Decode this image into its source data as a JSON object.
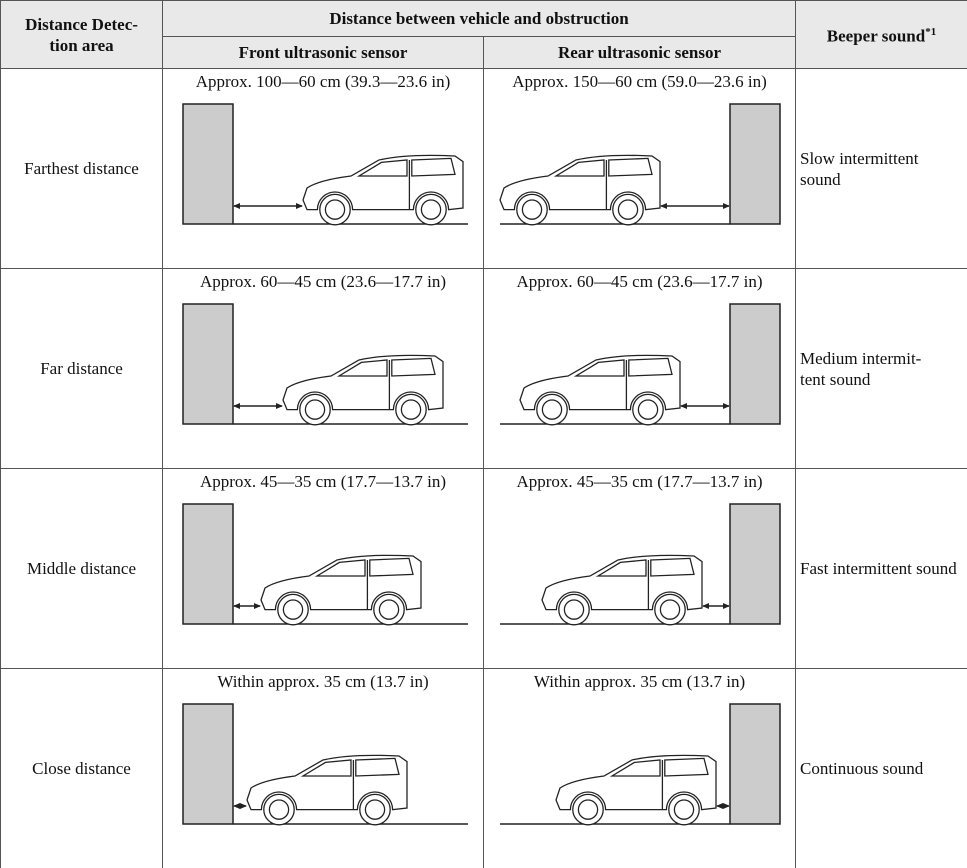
{
  "header": {
    "area": "Distance Detec-\ntion area",
    "group": "Distance between vehicle and obstruction",
    "front": "Front ultrasonic sensor",
    "rear": "Rear ultrasonic sensor",
    "beeper": "Beeper sound",
    "beeper_note": "*1"
  },
  "rows": [
    {
      "area": "Farthest distance",
      "front": "Approx. 100—60 cm (39.3—23.6 in)",
      "rear": "Approx. 150—60 cm (59.0—23.6 in)",
      "sound": "Slow intermittent sound"
    },
    {
      "area": "Far distance",
      "front": "Approx. 60—45 cm (23.6—17.7 in)",
      "rear": "Approx. 60—45 cm (23.6—17.7 in)",
      "sound": "Medium intermit-\ntent sound"
    },
    {
      "area": "Middle distance",
      "front": "Approx. 45—35 cm (17.7—13.7 in)",
      "rear": "Approx. 45—35 cm (17.7—13.7 in)",
      "sound": "Fast intermittent sound"
    },
    {
      "area": "Close distance",
      "front": "Within approx. 35 cm (13.7 in)",
      "rear": "Within approx. 35 cm (13.7 in)",
      "sound": "Continuous sound"
    }
  ]
}
